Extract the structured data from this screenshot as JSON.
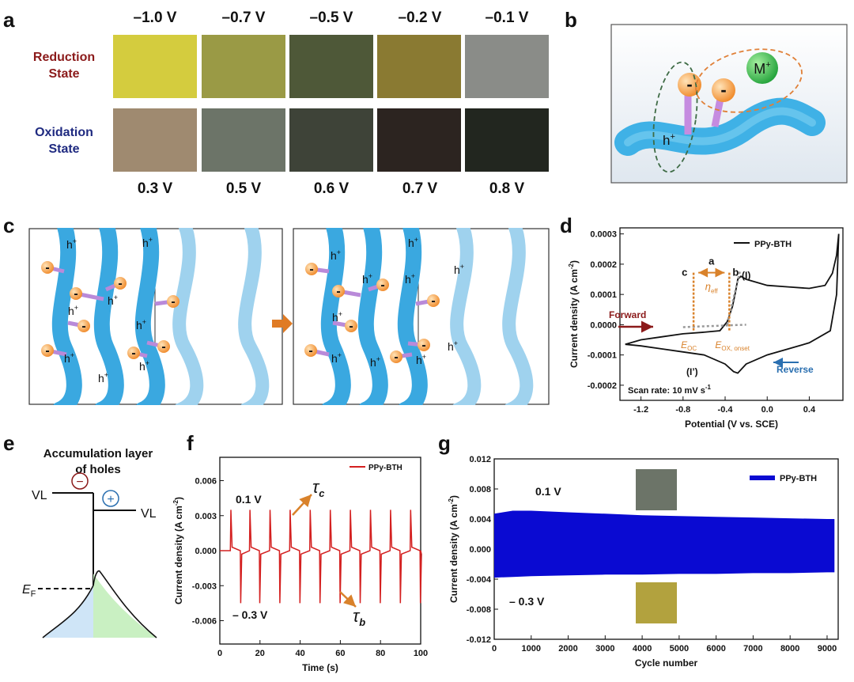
{
  "panel_letters": [
    "a",
    "b",
    "c",
    "d",
    "e",
    "f",
    "g"
  ],
  "panel_a": {
    "top_voltages": [
      "–1.0 V",
      "–0.7 V",
      "–0.5 V",
      "–0.2 V",
      "–0.1 V"
    ],
    "bottom_voltages": [
      "0.3 V",
      "0.5 V",
      "0.6 V",
      "0.7 V",
      "0.8 V"
    ],
    "reduction_label": [
      "Reduction",
      "State"
    ],
    "oxidation_label": [
      "Oxidation",
      "State"
    ],
    "reduction_colors": [
      "#d4cc3e",
      "#9a9a45",
      "#4e5838",
      "#8a7a32",
      "#8a8c88"
    ],
    "oxidation_colors": [
      "#9f8a70",
      "#6c7468",
      "#3e4338",
      "#2c2420",
      "#22261f"
    ]
  },
  "panel_b": {
    "ion_label": "M",
    "ion_sup": "+",
    "hole_label": "h",
    "hole_sup": "+"
  },
  "panel_c": {
    "hole_label": "h",
    "hole_sup": "+",
    "arrow_color": "#e07b24"
  },
  "panel_d": {
    "legend": "PPy-BTH",
    "ylabel": "Current density (A cm",
    "ylabel_sup": "-2",
    "ylabel_close": ")",
    "xlabel": "Potential (V vs. SCE)",
    "yticks": [
      "0.0003",
      "0.0002",
      "0.0001",
      "0.0000",
      "-0.0001",
      "-0.0002"
    ],
    "xticks": [
      "-1.2",
      "-0.8",
      "-0.4",
      "0.0",
      "0.4"
    ],
    "forward": "Forward",
    "reverse": "Reverse",
    "scan_rate": "Scan rate: 10 mV s",
    "scan_rate_sup": "-1",
    "peak_I": "(I)",
    "peak_Iprime": "(I’)",
    "label_a": "a",
    "label_b": "b",
    "label_c": "c",
    "eta": "η",
    "eta_sub": "eff",
    "e_oc": "E",
    "e_oc_sub": "OC",
    "e_ox": "E",
    "e_ox_sub": "OX, onset"
  },
  "panel_e": {
    "title_line1": "Accumulation layer",
    "title_line2": "of holes",
    "vl_left": "VL",
    "vl_right": "VL",
    "ef": "E",
    "ef_sub": "F",
    "minus": "−",
    "plus": "+"
  },
  "panel_f": {
    "legend": "PPy-BTH",
    "ylabel": "Current density (A cm",
    "ylabel_sup": "-2",
    "ylabel_close": ")",
    "xlabel": "Time (s)",
    "yticks": [
      "0.006",
      "0.003",
      "0.000",
      "-0.003",
      "-0.006"
    ],
    "xticks": [
      "0",
      "20",
      "40",
      "60",
      "80",
      "100"
    ],
    "v_top": "0.1 V",
    "v_bot": "– 0.3 V",
    "tau_c": "τ",
    "tau_c_sub": "c",
    "tau_b": "τ",
    "tau_b_sub": "b"
  },
  "panel_g": {
    "legend": "PPy-BTH",
    "ylabel": "Current density (A cm",
    "ylabel_sup": "-2",
    "ylabel_close": ")",
    "xlabel": "Cycle number",
    "yticks": [
      "0.012",
      "0.008",
      "0.004",
      "0.000",
      "-0.004",
      "-0.008",
      "-0.012"
    ],
    "xticks": [
      "0",
      "1000",
      "2000",
      "3000",
      "4000",
      "5000",
      "6000",
      "7000",
      "8000",
      "9000"
    ],
    "v_top": "0.1 V",
    "v_bot": "– 0.3 V",
    "band_color": "#0a0ad2"
  },
  "chart_data": [
    {
      "panel": "d",
      "type": "line",
      "series": [
        {
          "name": "PPy-BTH",
          "x": [
            -1.35,
            -1.2,
            -1.0,
            -0.8,
            -0.6,
            -0.45,
            -0.38,
            -0.33,
            -0.3,
            -0.28,
            -0.25,
            -0.2,
            0.0,
            0.2,
            0.4,
            0.55,
            0.62,
            0.66,
            0.68,
            0.66,
            0.6,
            0.4,
            0.2,
            0.0,
            -0.2,
            -0.28,
            -0.32,
            -0.4,
            -0.6,
            -0.8,
            -1.0,
            -1.2,
            -1.35
          ],
          "y": [
            -6.5e-05,
            -5e-05,
            -4e-05,
            -3e-05,
            -2.5e-05,
            -2e-05,
            1e-05,
            6e-05,
            0.00011,
            0.00015,
            0.00016,
            0.00015,
            0.00013,
            0.000125,
            0.00012,
            0.00013,
            0.00017,
            0.00023,
            0.0003,
            0.0001,
            -2e-05,
            -6e-05,
            -8e-05,
            -0.0001,
            -0.00013,
            -0.00016,
            -0.000155,
            -0.00013,
            -0.0001,
            -9e-05,
            -8e-05,
            -7e-05,
            -6.5e-05
          ]
        }
      ],
      "xlabel": "Potential (V vs. SCE)",
      "ylabel": "Current density (A cm-2)",
      "xlim": [
        -1.4,
        0.72
      ],
      "ylim": [
        -0.00025,
        0.00032
      ]
    },
    {
      "panel": "f",
      "type": "line",
      "series": [
        {
          "name": "PPy-BTH",
          "pulse_times": [
            5.5,
            15,
            25,
            35,
            45,
            55,
            65,
            75,
            85,
            95
          ],
          "peak_pos": 0.0035,
          "peak_neg": -0.0045
        }
      ],
      "xlabel": "Time (s)",
      "ylabel": "Current density (A cm-2)",
      "xlim": [
        0,
        100
      ],
      "ylim": [
        -0.008,
        0.008
      ]
    },
    {
      "panel": "g",
      "type": "area",
      "series": [
        {
          "name": "PPy-BTH",
          "x": [
            0,
            500,
            1000,
            2000,
            3000,
            4000,
            5000,
            6000,
            7000,
            8000,
            9000,
            9200
          ],
          "upper": [
            0.0047,
            0.0051,
            0.0051,
            0.0049,
            0.0047,
            0.0045,
            0.0044,
            0.0043,
            0.0042,
            0.0041,
            0.004,
            0.004
          ],
          "lower": [
            -0.0038,
            -0.0037,
            -0.0036,
            -0.0035,
            -0.0034,
            -0.0034,
            -0.0033,
            -0.0033,
            -0.0032,
            -0.0032,
            -0.0031,
            -0.0031
          ]
        }
      ],
      "xlabel": "Cycle number",
      "ylabel": "Current density (A cm-2)",
      "xlim": [
        0,
        9300
      ],
      "ylim": [
        -0.012,
        0.012
      ]
    }
  ]
}
